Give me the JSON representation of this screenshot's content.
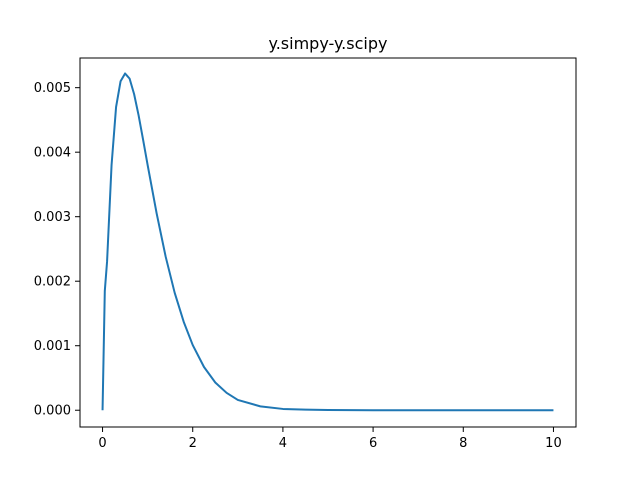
{
  "chart_data": {
    "type": "line",
    "title": "y.simpy-y.scipy",
    "xlabel": "",
    "ylabel": "",
    "xlim": [
      -0.5,
      10.5
    ],
    "ylim": [
      -0.00026,
      0.00546
    ],
    "x_ticks": [
      0,
      2,
      4,
      6,
      8,
      10
    ],
    "x_tick_labels": [
      "0",
      "2",
      "4",
      "6",
      "8",
      "10"
    ],
    "y_ticks": [
      0.0,
      0.001,
      0.002,
      0.003,
      0.004,
      0.005
    ],
    "y_tick_labels": [
      "0.000",
      "0.001",
      "0.002",
      "0.003",
      "0.004",
      "0.005"
    ],
    "grid": false,
    "series": [
      {
        "color": "#1f77b4",
        "x": [
          0,
          0.05,
          0.1,
          0.2,
          0.3,
          0.4,
          0.5,
          0.6,
          0.7,
          0.8,
          0.9,
          1.0,
          1.2,
          1.4,
          1.6,
          1.8,
          2.0,
          2.25,
          2.5,
          2.75,
          3.0,
          3.5,
          4.0,
          4.5,
          5.0,
          5.5,
          6.0,
          7.0,
          8.0,
          9.0,
          10.0
        ],
        "y": [
          0.0,
          0.00185,
          0.0023,
          0.0038,
          0.0047,
          0.0051,
          0.00522,
          0.00514,
          0.0049,
          0.00457,
          0.00419,
          0.0038,
          0.00305,
          0.00238,
          0.00182,
          0.00137,
          0.00101,
          0.00067,
          0.00043,
          0.00027,
          0.00016,
          6e-05,
          2e-05,
          1e-05,
          4e-06,
          1.5e-06,
          5e-07,
          0.0,
          0.0,
          0.0,
          0.0
        ]
      }
    ]
  }
}
